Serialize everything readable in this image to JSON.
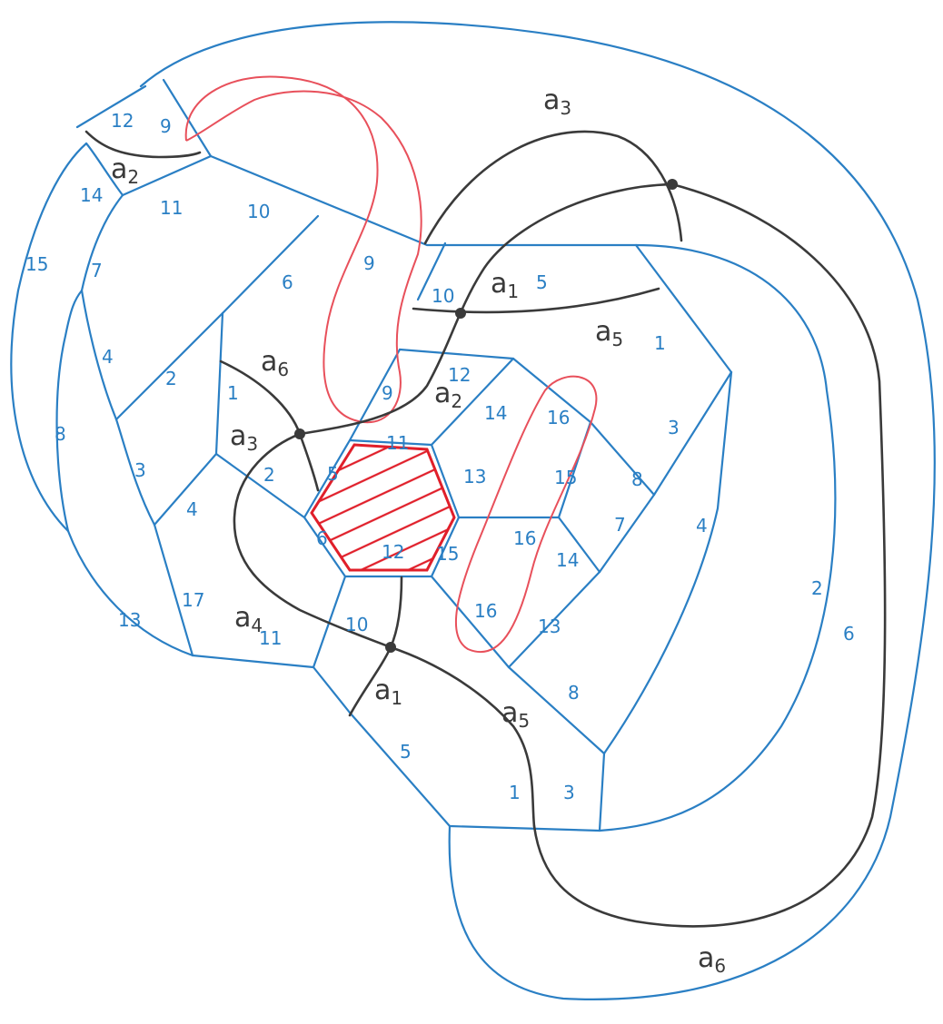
{
  "colors": {
    "edge": "#2a7fc4",
    "arc": "#3a3a3a",
    "red_curve": "#e8505b",
    "face_outline": "#e01f2a",
    "hatch": "#e01f2a",
    "background": "#ffffff"
  },
  "labels": {
    "arcs": [
      {
        "id": "a1-top",
        "text": "a",
        "sub": "1"
      },
      {
        "id": "a1-bottom",
        "text": "a",
        "sub": "1"
      },
      {
        "id": "a2-top",
        "text": "a",
        "sub": "2"
      },
      {
        "id": "a2-center",
        "text": "a",
        "sub": "2"
      },
      {
        "id": "a3-top",
        "text": "a",
        "sub": "3"
      },
      {
        "id": "a3-left",
        "text": "a",
        "sub": "3"
      },
      {
        "id": "a4",
        "text": "a",
        "sub": "4"
      },
      {
        "id": "a5-right",
        "text": "a",
        "sub": "5"
      },
      {
        "id": "a5-bottom",
        "text": "a",
        "sub": "5"
      },
      {
        "id": "a6-left",
        "text": "a",
        "sub": "6"
      },
      {
        "id": "a6-bottom",
        "text": "a",
        "sub": "6"
      }
    ],
    "edges": [
      "12",
      "9",
      "14",
      "11",
      "10",
      "15",
      "7",
      "6",
      "9",
      "10",
      "5",
      "4",
      "2",
      "1",
      "8",
      "3",
      "4",
      "1",
      "2",
      "12",
      "14",
      "9",
      "11",
      "5",
      "13",
      "6",
      "12",
      "15",
      "16",
      "16",
      "15",
      "8",
      "7",
      "14",
      "13",
      "16",
      "17",
      "13",
      "11",
      "10",
      "3",
      "4",
      "2",
      "8",
      "5",
      "1",
      "3",
      "6"
    ]
  }
}
